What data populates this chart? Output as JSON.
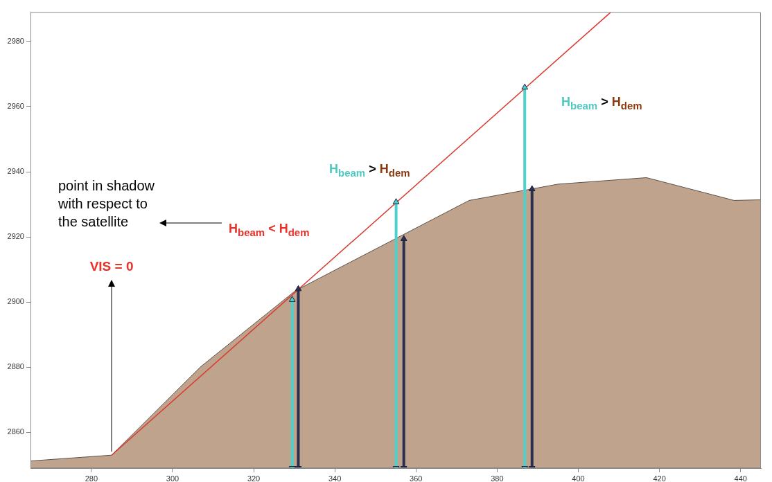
{
  "chart_data": {
    "type": "area",
    "xlim": [
      265,
      445
    ],
    "ylim": [
      2849,
      2989
    ],
    "xticks": [
      280,
      300,
      320,
      340,
      360,
      380,
      400,
      420,
      440
    ],
    "yticks": [
      2860,
      2880,
      2900,
      2920,
      2940,
      2960,
      2980
    ],
    "series": [
      {
        "color": "#bfa38c",
        "x": [
          265,
          285,
          307,
          330.3,
          373.1,
          395,
          416.8,
          438.4,
          445
        ],
        "values": [
          2851.2,
          2853,
          2880.2,
          2903.5,
          2931.2,
          2936.2,
          2938.2,
          2931.2,
          2931.4
        ]
      },
      {
        "type": "line",
        "color": "#d93a30",
        "x": [
          285,
          408
        ],
        "values": [
          2853,
          2989
        ]
      },
      {
        "type": "line",
        "color": "#4fd1cb",
        "marker": "triangle",
        "x": [
          329.5,
          329.5
        ],
        "values": [
          2849,
          2900.7
        ]
      },
      {
        "type": "line",
        "color": "#2b3050",
        "marker": "triangle",
        "x": [
          331,
          331
        ],
        "values": [
          2849,
          2904
        ]
      },
      {
        "type": "line",
        "color": "#4fd1cb",
        "marker": "triangle",
        "x": [
          355.1,
          355.1
        ],
        "values": [
          2849,
          2930.7
        ]
      },
      {
        "type": "line",
        "color": "#2b3050",
        "marker": "triangle",
        "x": [
          357,
          357
        ],
        "values": [
          2849,
          2919.4
        ]
      },
      {
        "type": "line",
        "color": "#4fd1cb",
        "marker": "triangle",
        "x": [
          386.8,
          386.8
        ],
        "values": [
          2849,
          2965.9
        ]
      },
      {
        "type": "line",
        "color": "#2b3050",
        "marker": "triangle",
        "x": [
          388.6,
          388.6
        ],
        "values": [
          2849,
          2934.7
        ]
      }
    ],
    "annotations": [
      "point in shadow with respect to the satellite",
      {
        "text": "VIS = 0",
        "x": 285,
        "y": 2853
      },
      "H$_{beam}$ < H$_{dem}$",
      "H$_{beam}$ > H$_{dem}$",
      "H$_{beam}$ > H$_{dem}$"
    ]
  }
}
